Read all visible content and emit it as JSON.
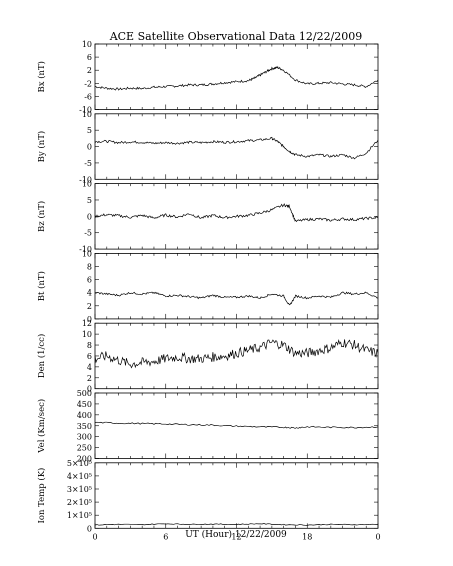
{
  "chart_data": {
    "type": "line",
    "title": "ACE Satellite Observational Data   12/22/2009",
    "xlabel": "UT (Hour)   12/22/2009",
    "xlim": [
      0,
      24
    ],
    "x_ticks": [
      "0",
      "6",
      "12",
      "18",
      "0"
    ],
    "panels": [
      {
        "ylabel": "Bx (nT)",
        "ylim": [
          -10,
          10
        ],
        "y_ticks": [
          "10",
          "6",
          "2",
          "-2",
          "-6",
          "-10"
        ],
        "series": [
          {
            "x": [
              0,
              1,
              2,
              3,
              4,
              5,
              6,
              7,
              8,
              9,
              10,
              11,
              12,
              13,
              13.5,
              14,
              14.5,
              15,
              15.5,
              16,
              17,
              18,
              19,
              20,
              21,
              22,
              23,
              24
            ],
            "y": [
              -3,
              -3.5,
              -3.8,
              -3.5,
              -3.6,
              -3.2,
              -3,
              -2.8,
              -2.5,
              -2.5,
              -2.2,
              -1.8,
              -1.5,
              -1.2,
              -0.5,
              0.5,
              1.5,
              2.5,
              2.8,
              2,
              -1,
              -2.2,
              -2,
              -1.8,
              -2.2,
              -2.5,
              -3,
              -1
            ]
          }
        ]
      },
      {
        "ylabel": "By (nT)",
        "ylim": [
          -10,
          10
        ],
        "y_ticks": [
          "10",
          "5",
          "0",
          "-5",
          "-10"
        ],
        "series": [
          {
            "x": [
              0,
              1,
              2,
              3,
              4,
              5,
              6,
              7,
              8,
              9,
              10,
              11,
              12,
              13,
              14,
              15,
              15.5,
              16,
              16.5,
              17,
              18,
              19,
              20,
              21,
              22,
              23,
              24
            ],
            "y": [
              1.5,
              1.6,
              1.2,
              1.4,
              1.3,
              1,
              1.2,
              1,
              1.3,
              1.2,
              1.5,
              1.3,
              1.5,
              1.8,
              2,
              2.5,
              1.5,
              0,
              -1.5,
              -2.5,
              -3,
              -2.5,
              -3,
              -2.5,
              -3.5,
              -2,
              2
            ]
          }
        ]
      },
      {
        "ylabel": "Bz (nT)",
        "ylim": [
          -10,
          10
        ],
        "y_ticks": [
          "10",
          "5",
          "0",
          "-5",
          "-10"
        ],
        "series": [
          {
            "x": [
              0,
              1,
              2,
              3,
              4,
              5,
              6,
              7,
              8,
              9,
              10,
              11,
              12,
              13,
              14,
              15,
              16,
              16.5,
              17,
              18,
              19,
              20,
              21,
              22,
              23,
              24
            ],
            "y": [
              0,
              0.5,
              0.2,
              -0.3,
              0.3,
              -0.5,
              0.4,
              -0.2,
              0.8,
              -0.5,
              0.3,
              -0.4,
              0,
              0.3,
              1,
              2,
              3.5,
              3,
              -1.5,
              -1,
              -0.8,
              -1.2,
              -0.8,
              -1,
              -0.6,
              -0.4
            ]
          }
        ]
      },
      {
        "ylabel": "Bt (nT)",
        "ylim": [
          0,
          10
        ],
        "y_ticks": [
          "10",
          "8",
          "6",
          "4",
          "2",
          "0"
        ],
        "series": [
          {
            "x": [
              0,
              1,
              2,
              3,
              4,
              5,
              6,
              7,
              8,
              9,
              10,
              11,
              12,
              13,
              14,
              15,
              16,
              16.5,
              17,
              18,
              19,
              20,
              21,
              22,
              23,
              24
            ],
            "y": [
              4,
              3.8,
              3.6,
              4,
              3.8,
              4,
              3.5,
              3.6,
              3.4,
              3.2,
              3.6,
              3.3,
              3.3,
              3.5,
              3.2,
              3.8,
              3.5,
              2,
              3.5,
              3.2,
              3.5,
              3.3,
              4,
              3.8,
              4,
              3.2
            ]
          }
        ]
      },
      {
        "ylabel": "Den (1/cc)",
        "ylim": [
          0,
          12
        ],
        "y_ticks": [
          "12",
          "10",
          "8",
          "6",
          "4",
          "2",
          "0"
        ],
        "series": [
          {
            "x": [
              0,
              1,
              2,
              3,
              4,
              5,
              6,
              7,
              8,
              9,
              10,
              11,
              12,
              13,
              14,
              15,
              16,
              17,
              18,
              19,
              20,
              21,
              22,
              23,
              24
            ],
            "y": [
              5.5,
              6,
              5.2,
              4.5,
              4.8,
              5,
              5.5,
              5.8,
              5.5,
              5.5,
              5.8,
              6,
              6.5,
              7,
              7.5,
              8.5,
              8,
              6.5,
              6.5,
              7,
              7.5,
              8.5,
              8,
              7,
              6.5
            ]
          }
        ]
      },
      {
        "ylabel": "Vel (Km/sec)",
        "ylim": [
          200,
          500
        ],
        "y_ticks": [
          "500",
          "450",
          "400",
          "350",
          "300",
          "250",
          "200"
        ],
        "series": [
          {
            "x": [
              0,
              2,
              4,
              6,
              8,
              10,
              12,
              14,
              16,
              17,
              18,
              20,
              22,
              24
            ],
            "y": [
              365,
              362,
              360,
              358,
              355,
              353,
              348,
              345,
              343,
              340,
              345,
              343,
              342,
              345
            ]
          }
        ]
      },
      {
        "ylabel": "Ion Temp (K)",
        "ylim": [
          0,
          500000
        ],
        "y_ticks": [
          "5×10⁵",
          "4×10⁵",
          "3×10⁵",
          "2×10⁵",
          "1×10⁵",
          "0"
        ],
        "series": [
          {
            "x": [
              0,
              2,
              4,
              6,
              8,
              10,
              12,
              14,
              16,
              18,
              20,
              22,
              24
            ],
            "y": [
              25000,
              30000,
              28000,
              35000,
              30000,
              32000,
              30000,
              35000,
              28000,
              25000,
              30000,
              28000,
              30000
            ]
          }
        ]
      }
    ]
  }
}
